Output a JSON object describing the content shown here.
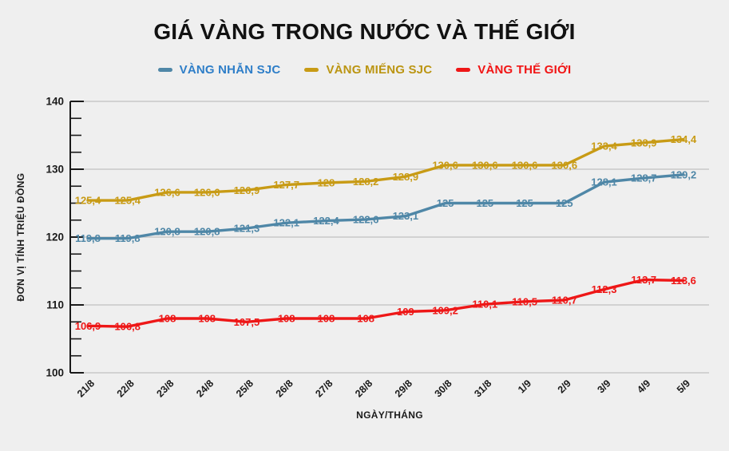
{
  "title": "GIÁ VÀNG TRONG NƯỚC VÀ THẾ GIỚI",
  "chart_data": {
    "type": "line",
    "categories": [
      "21/8",
      "22/8",
      "23/8",
      "24/8",
      "25/8",
      "26/8",
      "27/8",
      "28/8",
      "29/8",
      "30/8",
      "31/8",
      "1/9",
      "2/9",
      "3/9",
      "4/9",
      "5/9"
    ],
    "series": [
      {
        "name": "VÀNG NHẪN SJC",
        "color": "#4f87a7",
        "legend_text_color": "#2e7ec8",
        "values": [
          119.8,
          119.8,
          120.8,
          120.8,
          121.3,
          122.1,
          122.4,
          122.6,
          123.1,
          125,
          125,
          125,
          125,
          128.1,
          128.7,
          129.2
        ]
      },
      {
        "name": "VÀNG MIẾNG SJC",
        "color": "#c89b15",
        "legend_text_color": "#bb9512",
        "values": [
          125.4,
          125.4,
          126.6,
          126.6,
          126.9,
          127.7,
          128,
          128.2,
          128.9,
          130.6,
          130.6,
          130.6,
          130.6,
          133.4,
          133.9,
          134.4
        ]
      },
      {
        "name": "VÀNG THẾ GIỚI",
        "color": "#ee1717",
        "legend_text_color": "#f11414",
        "values": [
          106.9,
          106.8,
          108,
          108,
          107.5,
          108,
          108,
          108,
          109,
          109.2,
          110.1,
          110.5,
          110.7,
          112.3,
          113.7,
          113.6
        ]
      }
    ],
    "xlabel": "NGÀY/THÁNG",
    "ylabel": "ĐƠN VỊ TÍNH TRIỆU ĐỒNG",
    "ylim": [
      100,
      140
    ],
    "yticks": [
      100,
      110,
      120,
      130,
      140
    ],
    "minor_tick_step": 2.5,
    "grid": true,
    "legend_position": "top",
    "decimal_separator": ","
  },
  "colors": {
    "background": "#efefef",
    "axis": "#1a1a1a",
    "grid": "#c9c9c9",
    "title": "#121212"
  }
}
